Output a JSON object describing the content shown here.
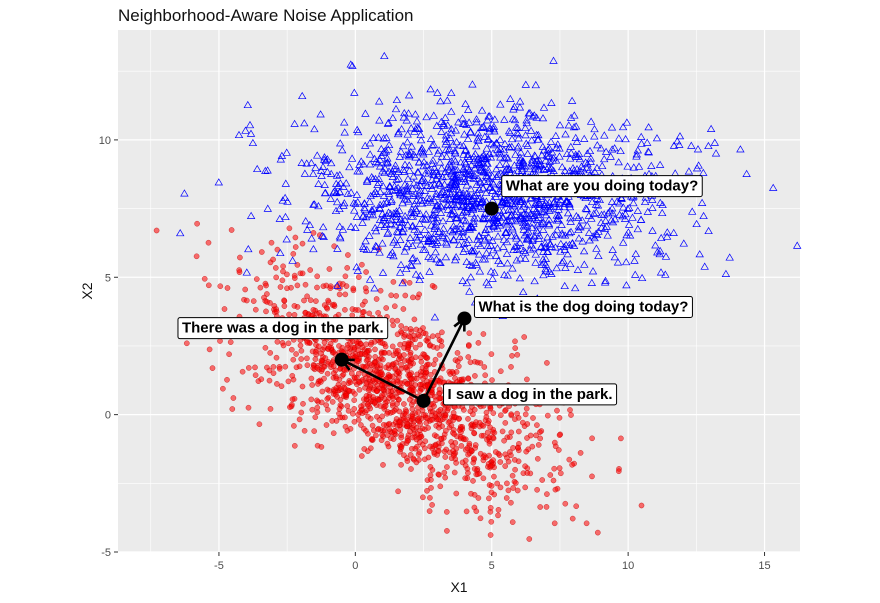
{
  "chart_data": {
    "type": "scatter",
    "title": "Neighborhood-Aware Noise Application",
    "xlabel": "X1",
    "ylabel": "X2",
    "xlim": [
      -8.7,
      16.3
    ],
    "ylim": [
      -5.0,
      14.0
    ],
    "x_ticks": [
      -5,
      0,
      5,
      10,
      15
    ],
    "y_ticks": [
      -5,
      0,
      5,
      10
    ],
    "grid": true,
    "legend": "none",
    "series": [
      {
        "marker": "circle",
        "color": "#ff0000",
        "count": 1500,
        "center": [
          1.5,
          1.0
        ],
        "spread": [
          2.8,
          2.0
        ],
        "correlation": -0.65
      },
      {
        "marker": "triangle",
        "color": "#0000ff",
        "count": 1600,
        "center": [
          5.0,
          8.0
        ],
        "spread": [
          3.3,
          1.45
        ],
        "correlation": 0.0
      }
    ],
    "annotations": [
      {
        "label": "What are you doing today?",
        "x": 5.0,
        "y": 7.5
      },
      {
        "label": "What is the dog doing today?",
        "x": 4.0,
        "y": 3.5
      },
      {
        "label": "There was a dog in the park.",
        "x": -0.5,
        "y": 2.0
      },
      {
        "label": "I saw a dog in the park.",
        "x": 2.5,
        "y": 0.5
      }
    ],
    "arrows": [
      {
        "from": [
          2.5,
          0.5
        ],
        "to": [
          4.0,
          3.5
        ]
      },
      {
        "from": [
          2.5,
          0.5
        ],
        "to": [
          -0.5,
          2.0
        ]
      }
    ]
  }
}
